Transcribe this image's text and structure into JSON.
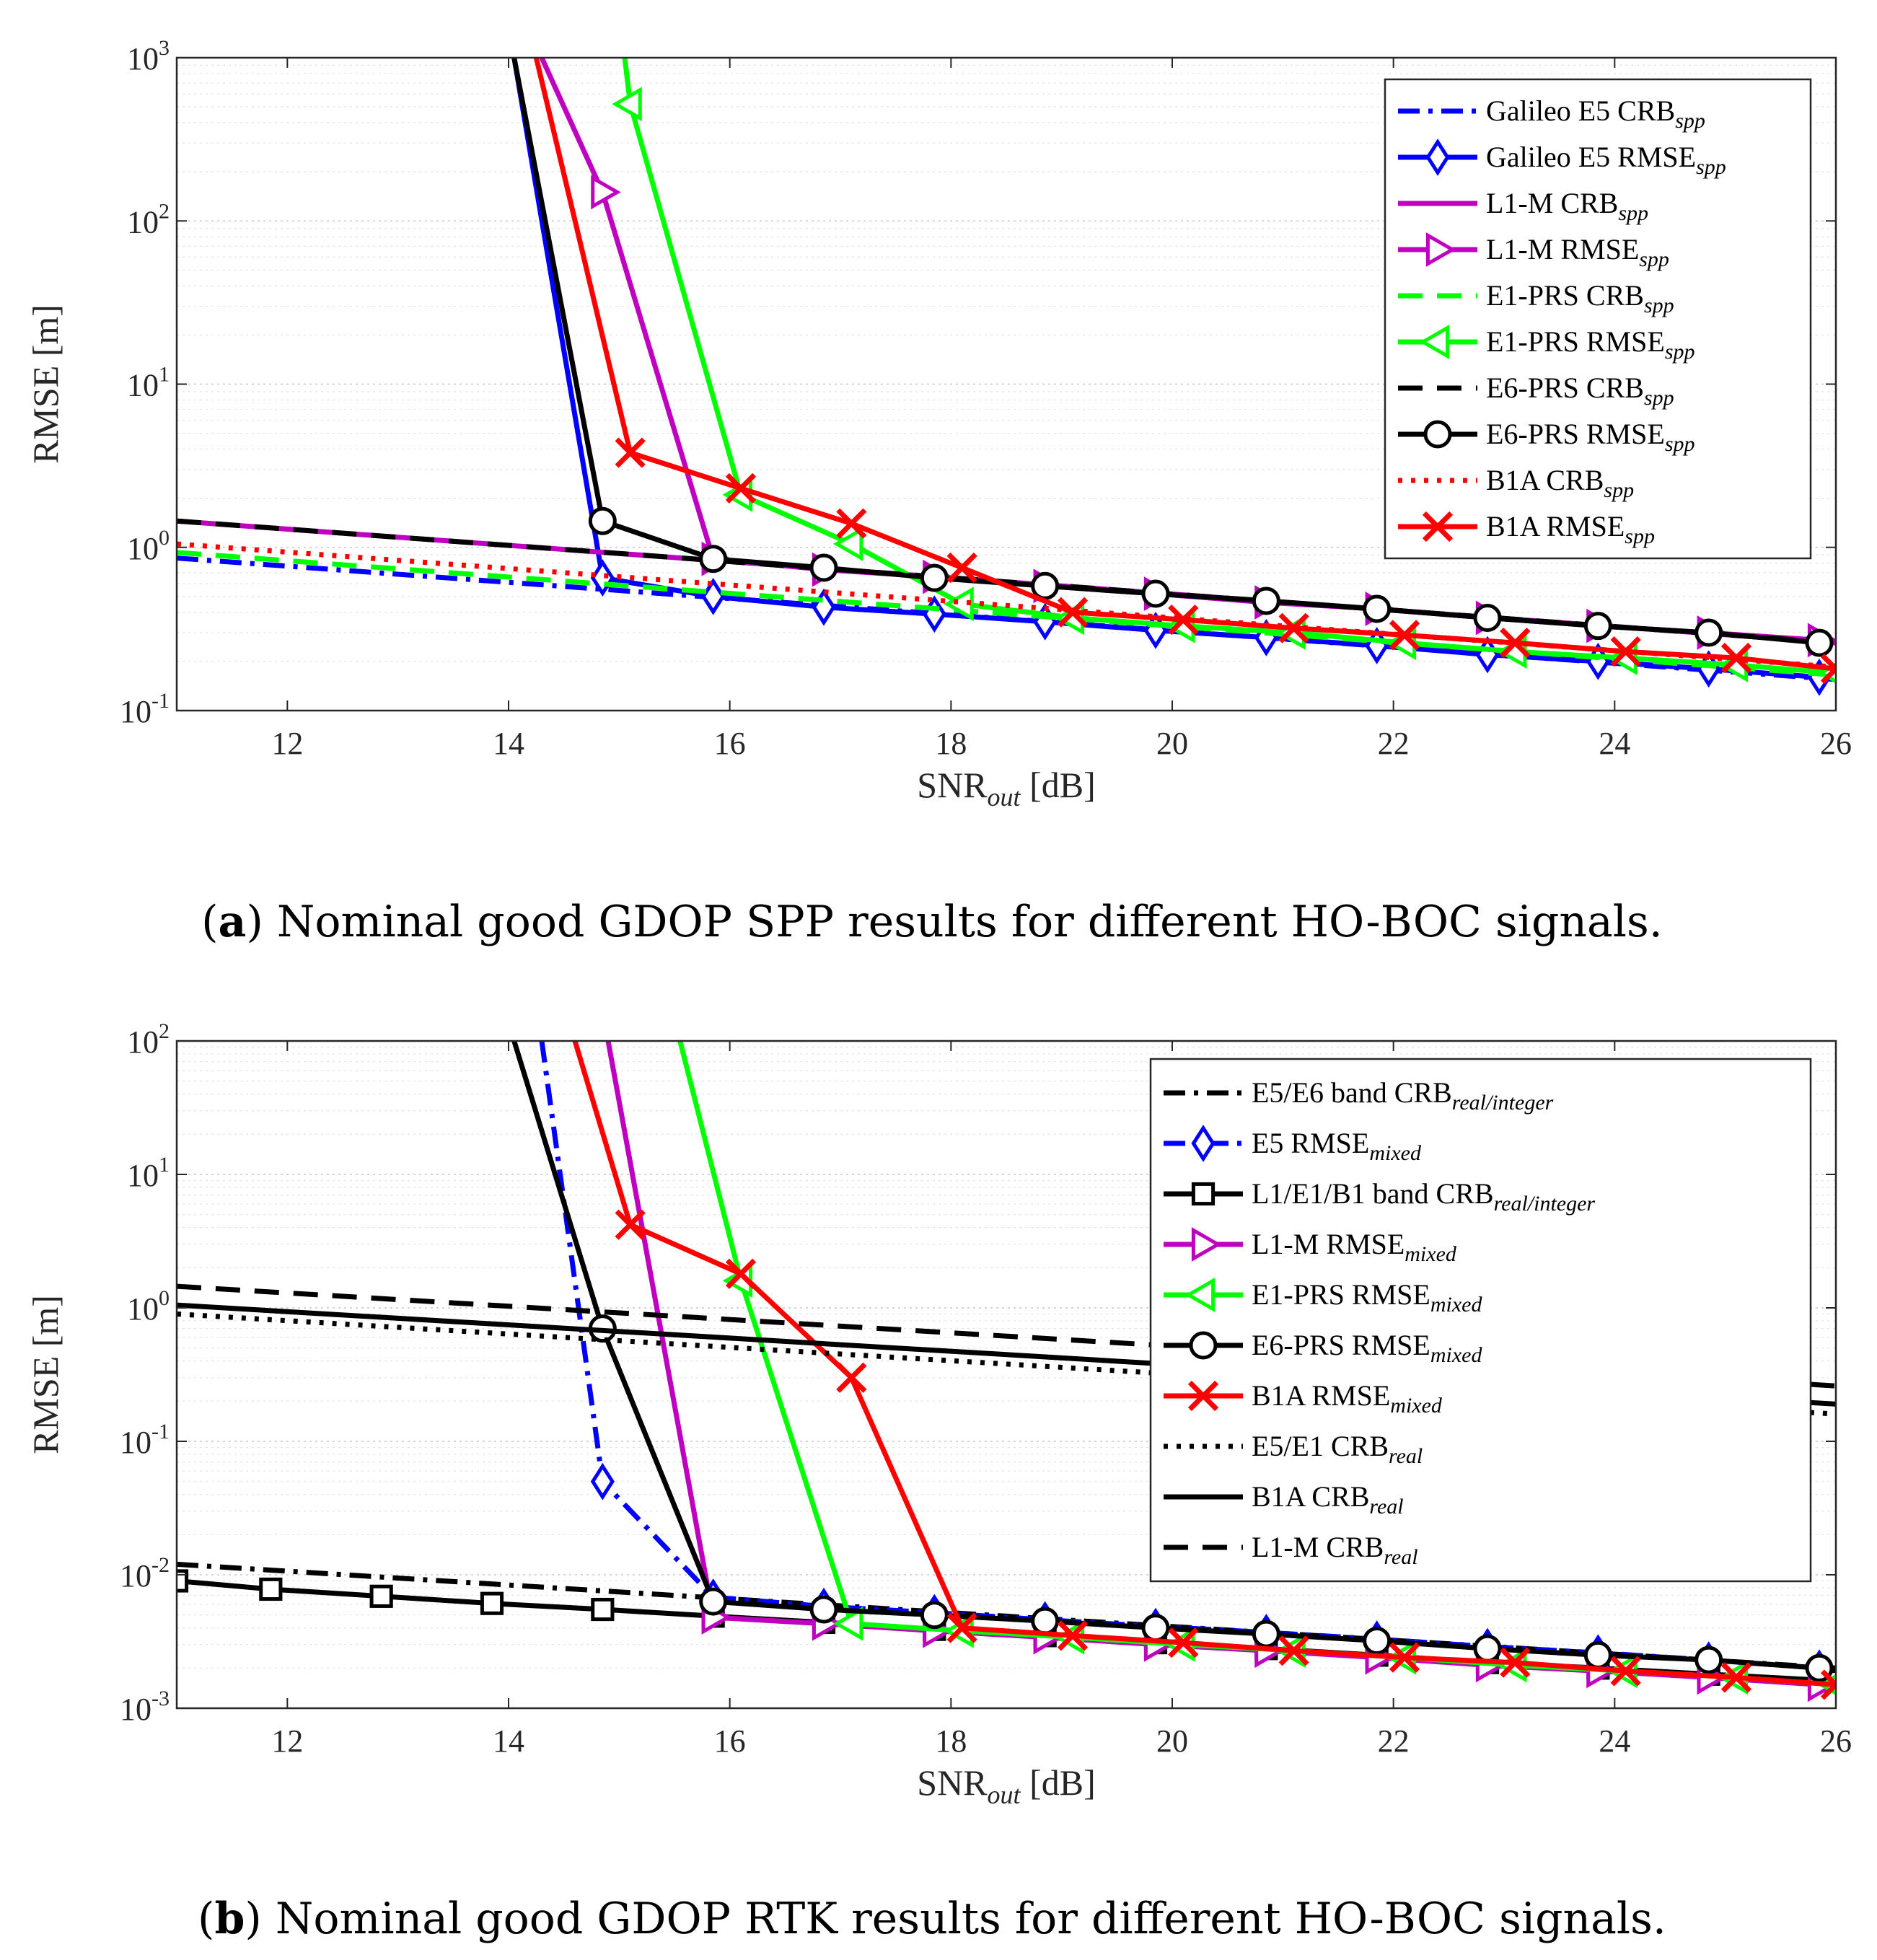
{
  "captions": {
    "a": {
      "letter": "a",
      "text": "Nominal good GDOP SPP results for different HO-BOC signals."
    },
    "b": {
      "letter": "b",
      "text": "Nominal good GDOP RTK results for different HO-BOC signals."
    }
  },
  "colors": {
    "blue": "#0000ff",
    "magenta": "#c000c0",
    "green": "#00ff00",
    "black": "#000000",
    "red": "#ff0000"
  },
  "chart_data": [
    {
      "id": "a",
      "type": "line",
      "yscale": "log",
      "xlabel": "SNR",
      "xlabel_sub": "out",
      "xlabel_unit": " [dB]",
      "ylabel": "RMSE [m]",
      "xlim": [
        11,
        26
      ],
      "ylim": [
        0.1,
        1000
      ],
      "xticks": [
        12,
        14,
        16,
        18,
        20,
        22,
        24,
        26
      ],
      "yticks": [
        {
          "base": "10",
          "exp": "-1",
          "v": 0.1
        },
        {
          "base": "10",
          "exp": "0",
          "v": 1
        },
        {
          "base": "10",
          "exp": "1",
          "v": 10
        },
        {
          "base": "10",
          "exp": "2",
          "v": 100
        },
        {
          "base": "10",
          "exp": "3",
          "v": 1000
        }
      ],
      "series": [
        {
          "name": "Galileo E5 CRB",
          "sub": "spp",
          "color": "#0000ff",
          "dash": "dashdot",
          "marker": "none",
          "x": [
            11,
            26
          ],
          "y": [
            0.86,
            0.155
          ]
        },
        {
          "name": "Galileo E5 RMSE",
          "sub": "spp",
          "color": "#0000ff",
          "dash": "solid",
          "marker": "diamond",
          "x": [
            14.05,
            14.85,
            15.85,
            16.85,
            17.85,
            18.85,
            19.85,
            20.85,
            21.85,
            22.85,
            23.85,
            24.85,
            25.85
          ],
          "y": [
            1000,
            0.65,
            0.5,
            0.43,
            0.39,
            0.35,
            0.31,
            0.28,
            0.25,
            0.22,
            0.2,
            0.18,
            0.16
          ]
        },
        {
          "name": "L1-M CRB",
          "sub": "spp",
          "color": "#c000c0",
          "dash": "solid",
          "marker": "none",
          "x": [
            11,
            26
          ],
          "y": [
            1.45,
            0.26
          ]
        },
        {
          "name": "L1-M RMSE",
          "sub": "spp",
          "color": "#c000c0",
          "dash": "solid",
          "marker": "triangle-right",
          "x": [
            14.3,
            14.85,
            15.85,
            16.85,
            17.85,
            18.85,
            19.85,
            20.85,
            21.85,
            22.85,
            23.85,
            24.85,
            25.85
          ],
          "y": [
            1000,
            150,
            0.85,
            0.73,
            0.66,
            0.58,
            0.52,
            0.46,
            0.42,
            0.37,
            0.33,
            0.3,
            0.27
          ]
        },
        {
          "name": "E1-PRS CRB",
          "sub": "spp",
          "color": "#00ff00",
          "dash": "dashed",
          "marker": "none",
          "x": [
            11,
            26
          ],
          "y": [
            0.93,
            0.165
          ]
        },
        {
          "name": "E1-PRS RMSE",
          "sub": "spp",
          "color": "#00ff00",
          "dash": "solid",
          "marker": "triangle-left",
          "x": [
            15.05,
            15.1,
            16.1,
            17.1,
            18.1,
            19.1,
            20.1,
            21.1,
            22.1,
            23.1,
            24.1,
            25.1,
            26
          ],
          "y": [
            1000,
            520,
            2.1,
            1.05,
            0.45,
            0.37,
            0.33,
            0.3,
            0.26,
            0.23,
            0.21,
            0.19,
            0.17
          ]
        },
        {
          "name": "E6-PRS CRB",
          "sub": "spp",
          "color": "#000000",
          "dash": "dashed",
          "marker": "none",
          "x": [
            11,
            26
          ],
          "y": [
            1.45,
            0.26
          ]
        },
        {
          "name": "E6-PRS RMSE",
          "sub": "spp",
          "color": "#000000",
          "dash": "solid",
          "marker": "circle",
          "x": [
            14.05,
            14.85,
            15.85,
            16.85,
            17.85,
            18.85,
            19.85,
            20.85,
            21.85,
            22.85,
            23.85,
            24.85,
            25.85
          ],
          "y": [
            1000,
            1.45,
            0.85,
            0.75,
            0.65,
            0.58,
            0.52,
            0.47,
            0.42,
            0.37,
            0.33,
            0.3,
            0.26
          ]
        },
        {
          "name": "B1A CRB",
          "sub": "spp",
          "color": "#ff0000",
          "dash": "dotted",
          "marker": "none",
          "x": [
            11,
            26
          ],
          "y": [
            1.05,
            0.185
          ]
        },
        {
          "name": "B1A RMSE",
          "sub": "spp",
          "color": "#ff0000",
          "dash": "solid",
          "marker": "x",
          "x": [
            14.25,
            15.1,
            16.1,
            17.1,
            18.1,
            19.1,
            20.1,
            21.1,
            22.1,
            23.1,
            24.1,
            25.1,
            26
          ],
          "y": [
            1000,
            3.8,
            2.3,
            1.4,
            0.75,
            0.4,
            0.36,
            0.32,
            0.29,
            0.26,
            0.23,
            0.21,
            0.18
          ]
        }
      ]
    },
    {
      "id": "b",
      "type": "line",
      "yscale": "log",
      "xlabel": "SNR",
      "xlabel_sub": "out",
      "xlabel_unit": " [dB]",
      "ylabel": "RMSE [m]",
      "xlim": [
        11,
        26
      ],
      "ylim": [
        0.001,
        100
      ],
      "xticks": [
        12,
        14,
        16,
        18,
        20,
        22,
        24,
        26
      ],
      "yticks": [
        {
          "base": "10",
          "exp": "-3",
          "v": 0.001
        },
        {
          "base": "10",
          "exp": "-2",
          "v": 0.01
        },
        {
          "base": "10",
          "exp": "-1",
          "v": 0.1
        },
        {
          "base": "10",
          "exp": "0",
          "v": 1
        },
        {
          "base": "10",
          "exp": "1",
          "v": 10
        },
        {
          "base": "10",
          "exp": "2",
          "v": 100
        }
      ],
      "series": [
        {
          "name": "E5/E6 band CRB",
          "sub": "real/integer",
          "color": "#000000",
          "dash": "dashdot",
          "marker": "none",
          "x": [
            11,
            26
          ],
          "y": [
            0.012,
            0.002
          ]
        },
        {
          "name": "E5 RMSE",
          "sub": "mixed",
          "color": "#0000ff",
          "dash": "dashdot",
          "marker": "diamond",
          "x": [
            14.3,
            14.85,
            15.85,
            16.85,
            17.85,
            18.85,
            19.85,
            20.85,
            21.85,
            22.85,
            23.85,
            24.85,
            25.85
          ],
          "y": [
            100,
            0.05,
            0.0068,
            0.0058,
            0.0052,
            0.0046,
            0.0041,
            0.0037,
            0.0033,
            0.0029,
            0.0026,
            0.0023,
            0.002
          ]
        },
        {
          "name": "L1/E1/B1 band CRB",
          "sub": "real/integer",
          "color": "#000000",
          "dash": "solid",
          "marker": "square",
          "x": [
            11,
            11.85,
            12.85,
            13.85,
            14.85,
            15.85,
            16.85,
            17.85,
            18.85,
            19.85,
            20.85,
            21.85,
            22.85,
            23.85,
            24.85,
            26
          ],
          "y": [
            0.009,
            0.0078,
            0.0069,
            0.0061,
            0.0055,
            0.0049,
            0.0044,
            0.0039,
            0.0035,
            0.0031,
            0.0028,
            0.0025,
            0.0022,
            0.002,
            0.0018,
            0.0016
          ]
        },
        {
          "name": "L1-M RMSE",
          "sub": "mixed",
          "color": "#c000c0",
          "dash": "solid",
          "marker": "triangle-right",
          "x": [
            14.9,
            15.85,
            16.85,
            17.85,
            18.85,
            19.85,
            20.85,
            21.85,
            22.85,
            23.85,
            24.85,
            25.85
          ],
          "y": [
            100,
            0.0048,
            0.0043,
            0.0038,
            0.0034,
            0.003,
            0.0027,
            0.0024,
            0.0021,
            0.0019,
            0.0017,
            0.0015
          ]
        },
        {
          "name": "E1-PRS RMSE",
          "sub": "mixed",
          "color": "#00ff00",
          "dash": "solid",
          "marker": "triangle-left",
          "x": [
            15.55,
            16.1,
            17.1,
            18.1,
            19.1,
            20.1,
            21.1,
            22.1,
            23.1,
            24.1,
            25.1,
            26
          ],
          "y": [
            100,
            1.6,
            0.0043,
            0.0038,
            0.0034,
            0.003,
            0.0027,
            0.0024,
            0.0021,
            0.0019,
            0.0017,
            0.0015
          ]
        },
        {
          "name": "E6-PRS RMSE",
          "sub": "mixed",
          "color": "#000000",
          "dash": "solid",
          "marker": "circle",
          "x": [
            14.05,
            14.85,
            15.85,
            16.85,
            17.85,
            18.85,
            19.85,
            20.85,
            21.85,
            22.85,
            23.85,
            24.85,
            25.85
          ],
          "y": [
            100,
            0.7,
            0.0063,
            0.0055,
            0.005,
            0.0045,
            0.004,
            0.0036,
            0.0032,
            0.0028,
            0.0025,
            0.0023,
            0.002
          ]
        },
        {
          "name": "B1A RMSE",
          "sub": "mixed",
          "color": "#ff0000",
          "dash": "solid",
          "marker": "x",
          "x": [
            14.6,
            15.1,
            16.1,
            17.1,
            18.1,
            19.1,
            20.1,
            21.1,
            22.1,
            23.1,
            24.1,
            25.1,
            26
          ],
          "y": [
            100,
            4.2,
            1.8,
            0.3,
            0.004,
            0.0035,
            0.0031,
            0.0027,
            0.0024,
            0.0022,
            0.0019,
            0.0017,
            0.0015
          ]
        },
        {
          "name": "E5/E1 CRB",
          "sub": "real",
          "color": "#000000",
          "dash": "dotted",
          "marker": "none",
          "x": [
            11,
            26
          ],
          "y": [
            0.9,
            0.16
          ]
        },
        {
          "name": "B1A CRB",
          "sub": "real",
          "color": "#000000",
          "dash": "solid",
          "marker": "none",
          "x": [
            11,
            26
          ],
          "y": [
            1.05,
            0.19
          ]
        },
        {
          "name": "L1-M CRB",
          "sub": "real",
          "color": "#000000",
          "dash": "dashed",
          "marker": "none",
          "x": [
            11,
            26
          ],
          "y": [
            1.45,
            0.26
          ]
        }
      ]
    }
  ]
}
